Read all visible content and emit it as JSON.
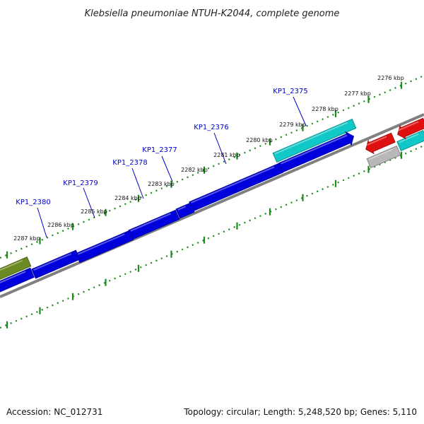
{
  "title": "Klebsiella pneumoniae NTUH-K2044, complete genome",
  "footer": {
    "accession": "Accession: NC_012731",
    "topology": "Topology: circular; Length: 5,248,520 bp; Genes: 5,110"
  },
  "ruler_ticks": [
    "2276 kbp",
    "2277 kbp",
    "2278 kbp",
    "2279 kbp",
    "2280 kbp",
    "2281 kbp",
    "2282 kbp",
    "2283 kbp",
    "2284 kbp",
    "2285 kbp",
    "2286 kbp",
    "2287 kbp"
  ],
  "gene_labels": [
    "KP1_2375",
    "KP1_2376",
    "KP1_2377",
    "KP1_2378",
    "KP1_2379",
    "KP1_2380"
  ],
  "colors": {
    "blue": "#0000dd",
    "cyan": "#10c8c8",
    "olive": "#6b8a23",
    "red": "#e01010",
    "grey": "#b8b8b8",
    "backbone": "#808080",
    "ruler": "#1b8a1b",
    "label": "#0000cc"
  }
}
